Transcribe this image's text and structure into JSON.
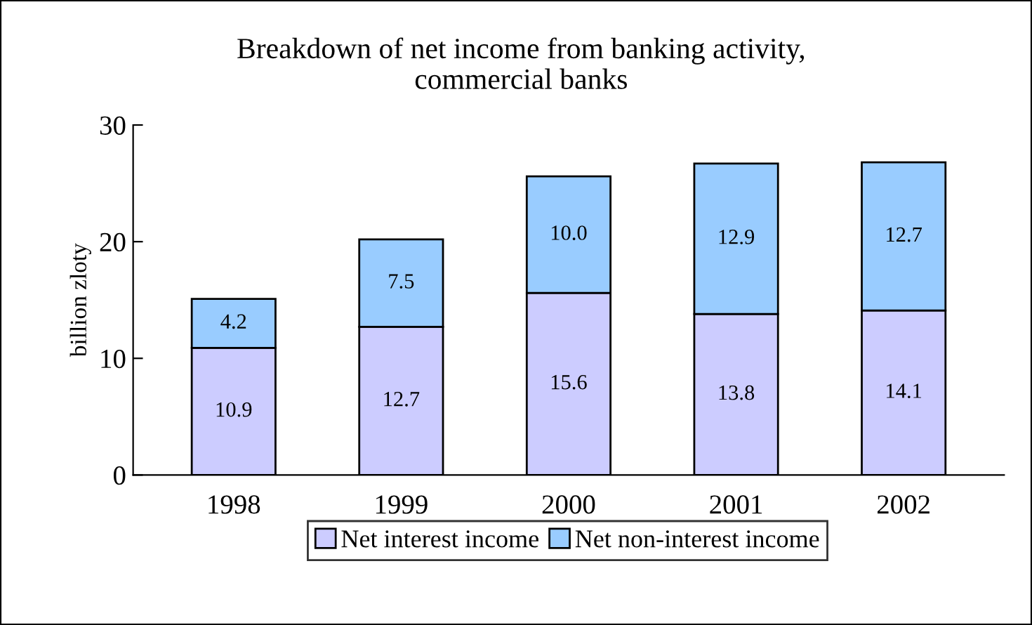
{
  "chart_data": {
    "type": "bar",
    "title": "Breakdown of net income from banking activity,\ncommercial banks",
    "ylabel": "billion zloty",
    "categories": [
      "1998",
      "1999",
      "2000",
      "2001",
      "2002"
    ],
    "stacked": true,
    "series": [
      {
        "name": "Net interest income",
        "color": "#ccccff",
        "values": [
          10.9,
          12.7,
          15.6,
          13.8,
          14.1
        ],
        "value_labels": [
          "10.9",
          "12.7",
          "15.6",
          "13.8",
          "14.1"
        ]
      },
      {
        "name": "Net non-interest income",
        "color": "#99ccff",
        "values": [
          4.2,
          7.5,
          10.0,
          12.9,
          12.7
        ],
        "value_labels": [
          "4.2",
          "7.5",
          "10.0",
          "12.9",
          "12.7"
        ]
      }
    ],
    "ylim": [
      0,
      30
    ],
    "yticks": [
      0,
      10,
      20,
      30
    ],
    "grid": false,
    "legend": "bottom"
  }
}
